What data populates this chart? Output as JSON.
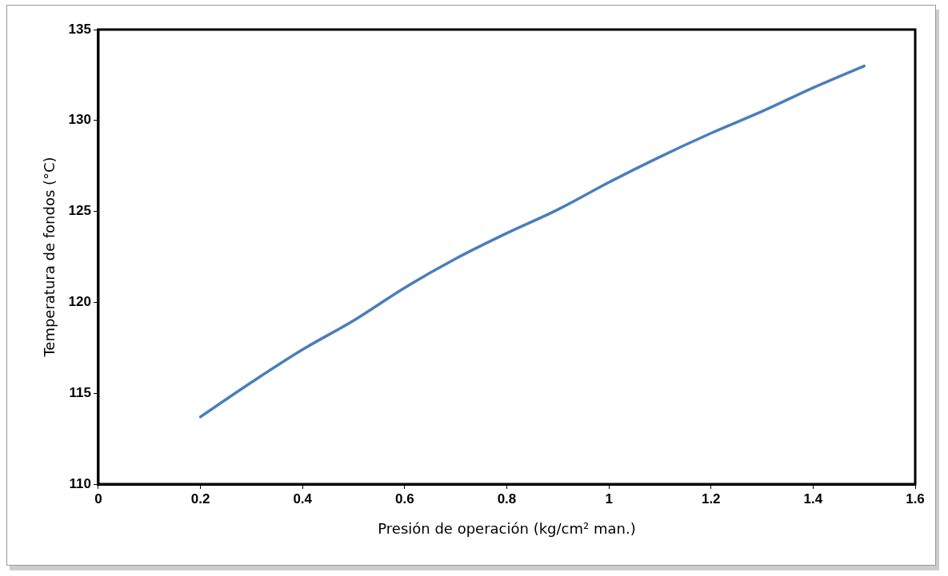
{
  "chart_data": {
    "type": "line",
    "xlabel": "Presión de operación (kg/cm² man.)",
    "ylabel": "Temperatura de fondos (°C)",
    "series": [
      {
        "color": "#4a7ebb",
        "x": [
          0.2,
          0.3,
          0.4,
          0.5,
          0.6,
          0.7,
          0.8,
          0.9,
          1.0,
          1.1,
          1.2,
          1.3,
          1.4,
          1.5
        ],
        "values": [
          113.7,
          115.6,
          117.4,
          119.0,
          120.8,
          122.4,
          123.8,
          125.1,
          126.6,
          128.0,
          129.3,
          130.5,
          131.8,
          133.0
        ]
      }
    ],
    "xlim": [
      0,
      1.6
    ],
    "xticks": [
      0,
      0.2,
      0.4,
      0.6,
      0.8,
      1,
      1.2,
      1.4,
      1.6
    ],
    "ylim": [
      110,
      135
    ],
    "yticks": [
      110,
      115,
      120,
      125,
      130,
      135
    ],
    "grid": false,
    "legend": false,
    "marker": "none",
    "line_style": "solid"
  }
}
